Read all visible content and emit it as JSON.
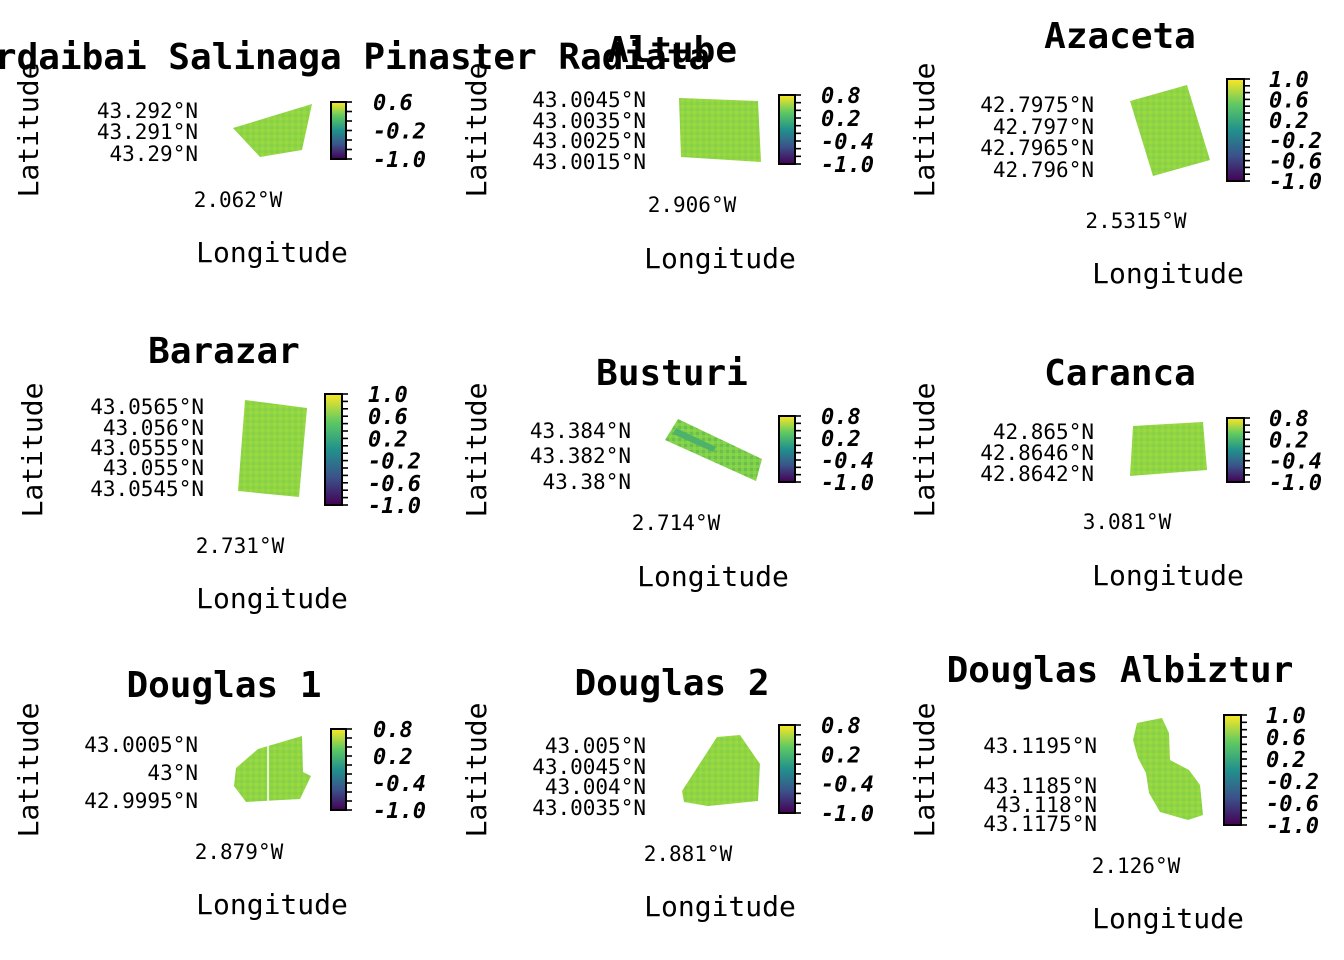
{
  "axis_labels": {
    "x": "Longitude",
    "y": "Latitude"
  },
  "colors": {
    "viridis": [
      "#440154",
      "#3b528b",
      "#21918c",
      "#5ec962",
      "#fde725"
    ],
    "field_fill": "#8fd544",
    "field_fill_dark": "#6cc049"
  },
  "panels": [
    {
      "title": "Mundaka Urdaibai Salinaga Pinaster Radiata",
      "lat_ticks": [
        "43.292°N",
        "43.291°N",
        "43.29°N"
      ],
      "lon_ticks": [
        "2.062°W"
      ],
      "colorbar_ticks": [
        "0.6",
        "-0.2",
        "-1.0"
      ],
      "color_max": 0.6
    },
    {
      "title": "Altube",
      "lat_ticks": [
        "43.0045°N",
        "43.0035°N",
        "43.0025°N",
        "43.0015°N"
      ],
      "lon_ticks": [
        "2.906°W"
      ],
      "colorbar_ticks": [
        "0.8",
        "0.2",
        "-0.4",
        "-1.0"
      ],
      "color_max": 0.8
    },
    {
      "title": "Azaceta",
      "lat_ticks": [
        "42.7975°N",
        "42.797°N",
        "42.7965°N",
        "42.796°N"
      ],
      "lon_ticks": [
        "2.5315°W"
      ],
      "colorbar_ticks": [
        "1.0",
        "0.6",
        "0.2",
        "-0.2",
        "-0.6",
        "-1.0"
      ],
      "color_max": 1.0
    },
    {
      "title": "Barazar",
      "lat_ticks": [
        "43.0565°N",
        "43.056°N",
        "43.0555°N",
        "43.055°N",
        "43.0545°N"
      ],
      "lon_ticks": [
        "2.731°W"
      ],
      "colorbar_ticks": [
        "1.0",
        "0.6",
        "0.2",
        "-0.2",
        "-0.6",
        "-1.0"
      ],
      "color_max": 1.0
    },
    {
      "title": "Busturi",
      "lat_ticks": [
        "43.384°N",
        "43.382°N",
        "43.38°N"
      ],
      "lon_ticks": [
        "2.714°W"
      ],
      "colorbar_ticks": [
        "0.8",
        "0.2",
        "-0.4",
        "-1.0"
      ],
      "color_max": 0.8
    },
    {
      "title": "Caranca",
      "lat_ticks": [
        "42.865°N",
        "42.8646°N",
        "42.8642°N"
      ],
      "lon_ticks": [
        "3.081°W"
      ],
      "colorbar_ticks": [
        "0.8",
        "0.2",
        "-0.4",
        "-1.0"
      ],
      "color_max": 0.8
    },
    {
      "title": "Douglas 1",
      "lat_ticks": [
        "43.0005°N",
        "43°N",
        "42.9995°N"
      ],
      "lon_ticks": [
        "2.879°W"
      ],
      "colorbar_ticks": [
        "0.8",
        "0.2",
        "-0.4",
        "-1.0"
      ],
      "color_max": 0.8
    },
    {
      "title": "Douglas 2",
      "lat_ticks": [
        "43.005°N",
        "43.0045°N",
        "43.004°N",
        "43.0035°N"
      ],
      "lon_ticks": [
        "2.881°W"
      ],
      "colorbar_ticks": [
        "0.8",
        "0.2",
        "-0.4",
        "-1.0"
      ],
      "color_max": 0.8
    },
    {
      "title": "Douglas Albiztur",
      "lat_ticks": [
        "43.1195°N",
        "43.1185°N",
        "43.118°N",
        "43.1175°N"
      ],
      "lon_ticks": [
        "2.126°W"
      ],
      "colorbar_ticks": [
        "1.0",
        "0.6",
        "0.2",
        "-0.2",
        "-0.6",
        "-1.0"
      ],
      "color_max": 1.0
    }
  ]
}
